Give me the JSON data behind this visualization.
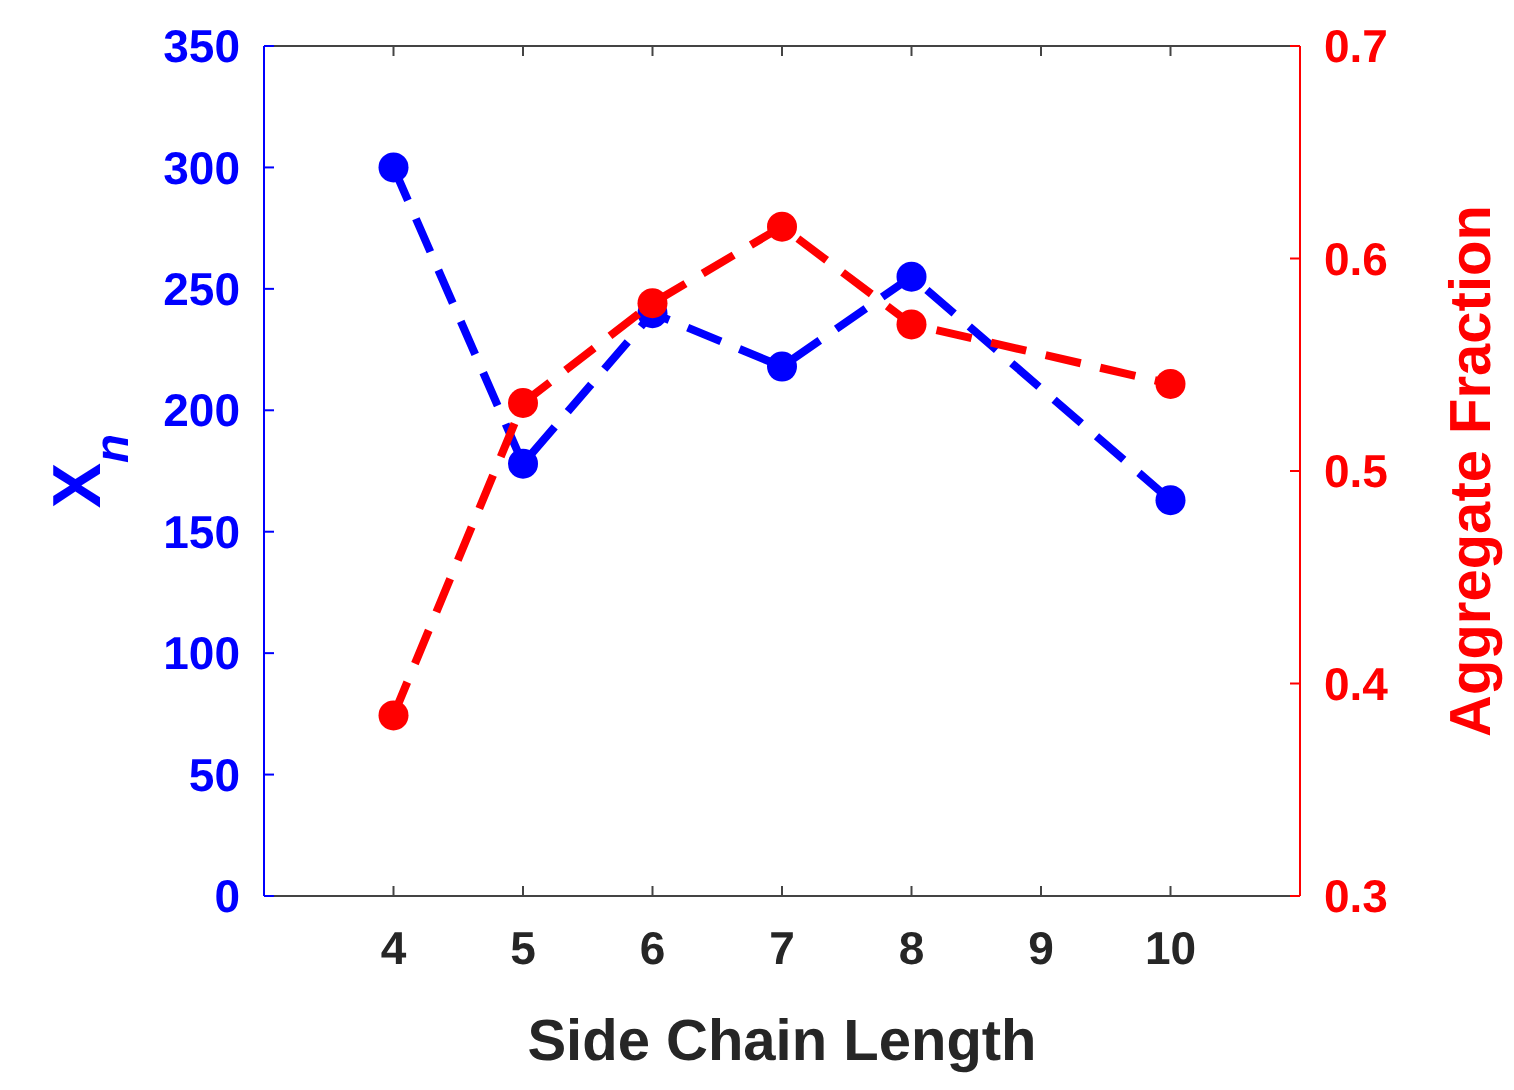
{
  "chart_data": {
    "type": "line",
    "xlabel": "Side Chain Length",
    "ylabel": "X$_{n}$",
    "y2label": "Aggregate Fraction",
    "x": [
      4,
      5,
      6,
      7,
      8,
      10
    ],
    "series": [
      {
        "color": "#0000ff",
        "values": [
          300,
          178,
          240,
          218,
          255,
          163
        ]
      },
      {
        "color": "#ff0000",
        "axis": "y2",
        "values": [
          0.385,
          0.532,
          0.579,
          0.615,
          0.569,
          0.541
        ]
      }
    ],
    "xlim": [
      3,
      11
    ],
    "xticks": [
      4,
      5,
      6,
      7,
      8,
      9,
      10
    ],
    "ylim": [
      0,
      350
    ],
    "yticks": [
      0,
      50,
      100,
      150,
      200,
      250,
      300,
      350
    ],
    "y2lim": [
      0.3,
      0.7
    ],
    "y2ticks": [
      0.3,
      0.4,
      0.5,
      0.6,
      0.7
    ],
    "grid": false,
    "marker": "circle",
    "line_style": "dashed"
  }
}
